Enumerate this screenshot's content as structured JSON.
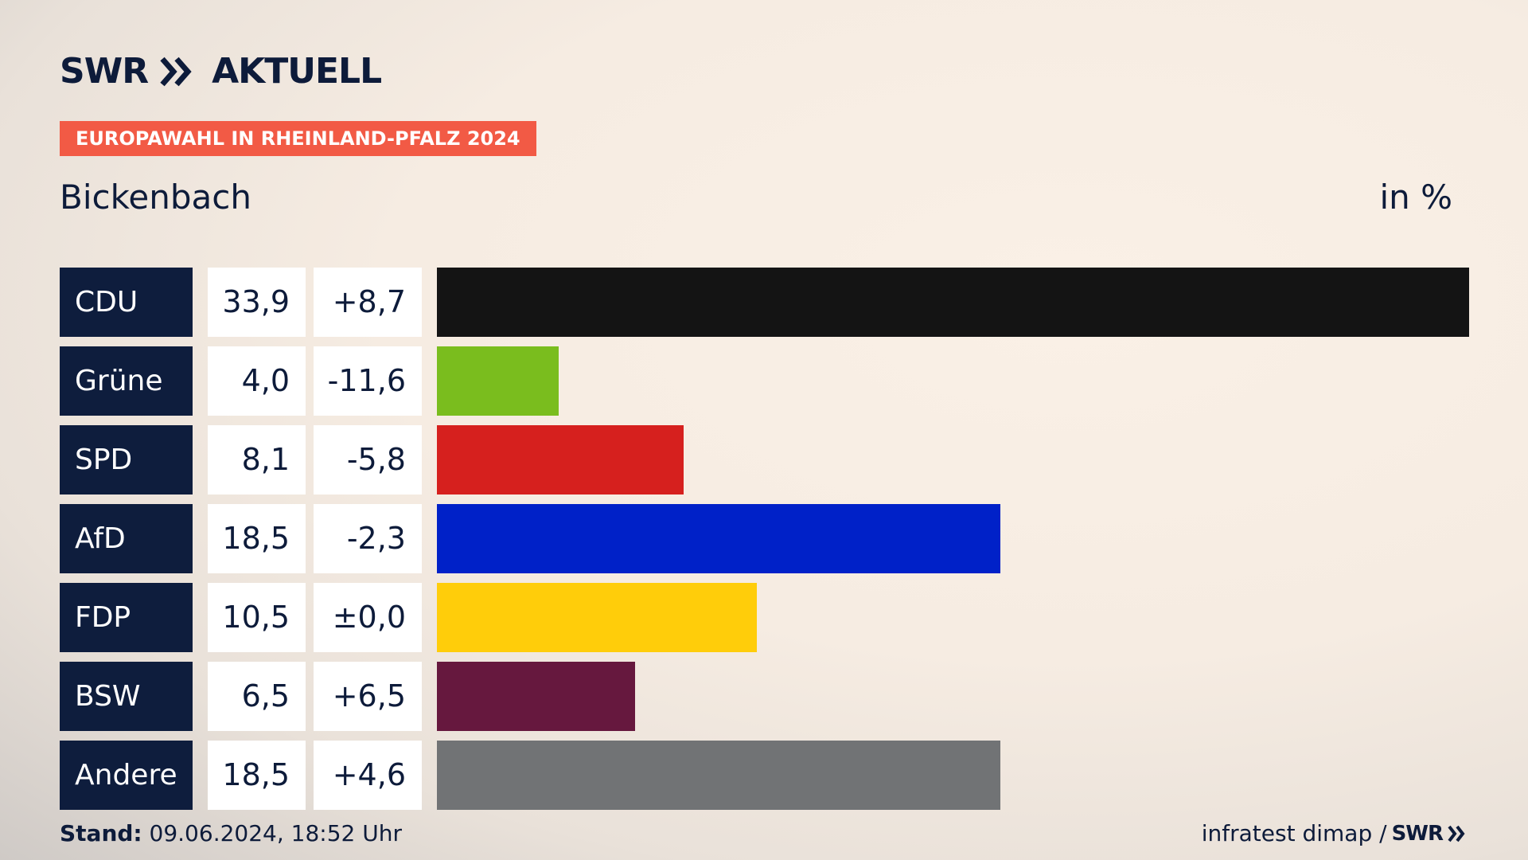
{
  "brand": {
    "logo_text": "SWR",
    "logo_suffix": "AKTUELL",
    "accent": "#f25a45",
    "navy": "#0e1d3d"
  },
  "header": {
    "badge": "EUROPAWAHL IN RHEINLAND-PFALZ 2024",
    "place": "Bickenbach",
    "unit": "in %"
  },
  "chart_data": {
    "type": "bar",
    "orientation": "horizontal",
    "title": "EUROPAWAHL IN RHEINLAND-PFALZ 2024",
    "subtitle": "Bickenbach",
    "unit": "in %",
    "categories": [
      "CDU",
      "Grüne",
      "SPD",
      "AfD",
      "FDP",
      "BSW",
      "Andere"
    ],
    "values": [
      33.9,
      4.0,
      8.1,
      18.5,
      10.5,
      6.5,
      18.5
    ],
    "value_labels": [
      "33,9",
      "4,0",
      "8,1",
      "18,5",
      "10,5",
      "6,5",
      "18,5"
    ],
    "diff_labels": [
      "+8,7",
      "-11,6",
      "-5,8",
      "-2,3",
      "±0,0",
      "+6,5",
      "+4,6"
    ],
    "colors": [
      "#141414",
      "#7abd1e",
      "#d6201e",
      "#0021c8",
      "#ffcd0a",
      "#66183e",
      "#717375"
    ],
    "xlim": [
      0,
      33.9
    ]
  },
  "footer": {
    "stand_label": "Stand:",
    "stand_value": "09.06.2024, 18:52 Uhr",
    "source": "infratest dimap /",
    "source_brand": "SWR"
  }
}
